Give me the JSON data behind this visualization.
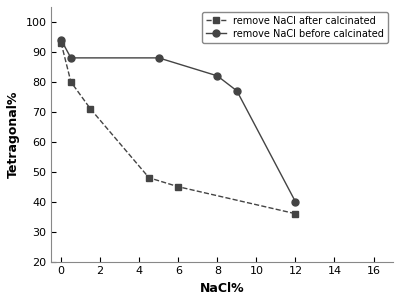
{
  "series1_label": "remove NaCl after calcinated",
  "series2_label": "remove NaCl before calcinated",
  "series1_x": [
    0,
    0.5,
    1.5,
    4.5,
    6,
    12
  ],
  "series1_y": [
    93,
    80,
    71,
    48,
    45,
    36
  ],
  "series2_x": [
    0,
    0.5,
    5,
    8,
    9,
    12
  ],
  "series2_y": [
    94,
    88,
    88,
    82,
    77,
    40
  ],
  "xlabel": "NaCl%",
  "ylabel": "Tetragonal%",
  "xlim": [
    -0.5,
    17
  ],
  "ylim": [
    20,
    105
  ],
  "xticks": [
    0,
    2,
    4,
    6,
    8,
    10,
    12,
    14,
    16
  ],
  "yticks": [
    20,
    30,
    40,
    50,
    60,
    70,
    80,
    90,
    100
  ],
  "bg_color": "#ffffff",
  "line_color": "#444444",
  "title_fontsize": 9,
  "label_fontsize": 9,
  "tick_fontsize": 8,
  "legend_fontsize": 7
}
